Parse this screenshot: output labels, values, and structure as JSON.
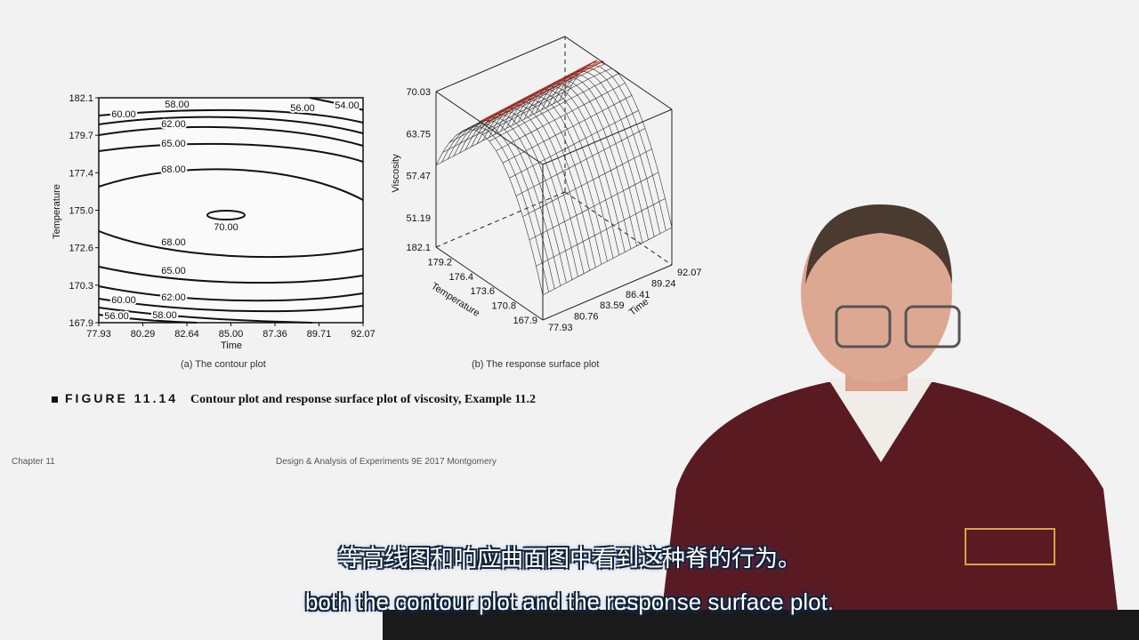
{
  "footer": {
    "chapter": "Chapter 11",
    "book": "Design & Analysis of Experiments 9E 2017 Montgomery"
  },
  "figure": {
    "number": "FIGURE 11.14",
    "caption": "Contour plot and response surface plot of viscosity, Example 11.2",
    "sub_a": "(a) The contour plot",
    "sub_b": "(b) The response surface plot"
  },
  "subtitles": {
    "zh": "等高线图和响应曲面图中看到这种脊的行为。",
    "en": "both the contour plot and the response surface plot."
  },
  "chart_data": [
    {
      "type": "contour",
      "xlabel": "Time",
      "ylabel": "Temperature",
      "x_ticks": [
        "77.93",
        "80.29",
        "82.64",
        "85.00",
        "87.36",
        "89.71",
        "92.07"
      ],
      "y_ticks": [
        "182.1",
        "179.7",
        "177.4",
        "175.0",
        "172.6",
        "170.3",
        "167.9"
      ],
      "xlim": [
        77.93,
        92.07
      ],
      "ylim": [
        167.9,
        182.1
      ],
      "contour_levels": [
        54.0,
        56.0,
        58.0,
        60.0,
        62.0,
        65.0,
        68.0,
        70.0
      ],
      "contour_labels": [
        "54.00",
        "56.00",
        "58.00",
        "60.00",
        "62.00",
        "65.00",
        "68.00",
        "70.00",
        "68.00",
        "65.00",
        "62.00",
        "60.00",
        "58.00",
        "56.00"
      ]
    },
    {
      "type": "surface",
      "zlabel": "Viscosity",
      "xlabel": "Temperature",
      "ylabel": "Time",
      "z_ticks": [
        "70.03",
        "63.75",
        "57.47",
        "51.19"
      ],
      "temperature_ticks": [
        "182.1",
        "179.2",
        "176.4",
        "173.6",
        "170.8",
        "167.9"
      ],
      "time_ticks": [
        "77.93",
        "80.76",
        "83.59",
        "86.41",
        "89.24",
        "92.07"
      ]
    }
  ]
}
